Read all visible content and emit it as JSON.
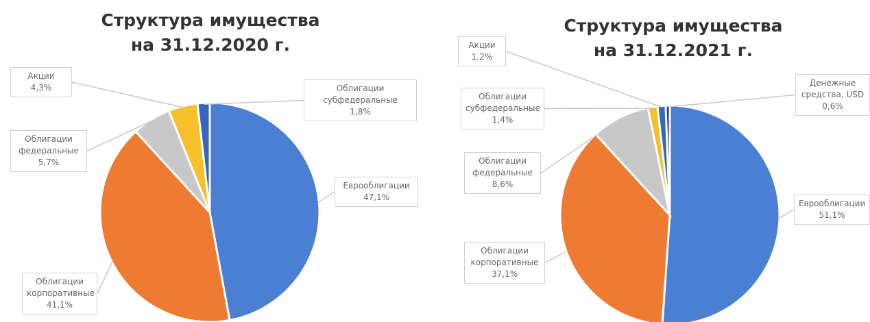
{
  "chart_data": [
    {
      "type": "pie",
      "title": "Структура имущества на 31.12.2020 г.",
      "categories": [
        "Еврооблигации",
        "Облигации корпоративные",
        "Облигации федеральные",
        "Акции",
        "Облигации субфедеральные"
      ],
      "values": [
        47.1,
        41.1,
        5.7,
        4.3,
        1.8
      ],
      "value_labels": [
        "47,1%",
        "41,1%",
        "5,7%",
        "4,3%",
        "1,8%"
      ],
      "colors": [
        "#4a7fd3",
        "#ee7b31",
        "#c8c8c8",
        "#f6c02b",
        "#3567c0"
      ]
    },
    {
      "type": "pie",
      "title": "Структура имущества на 31.12.2021 г.",
      "categories": [
        "Еврооблигации",
        "Облигации корпоративные",
        "Облигации федеральные",
        "Облигации субфедеральные",
        "Акции",
        "Денежные средства, USD"
      ],
      "values": [
        51.1,
        37.1,
        8.6,
        1.4,
        1.2,
        0.6
      ],
      "value_labels": [
        "51,1%",
        "37,1%",
        "8,6%",
        "1,4%",
        "1,2%",
        "0,6%"
      ],
      "colors": [
        "#4a7fd3",
        "#ee7b31",
        "#c8c8c8",
        "#f6c02b",
        "#3567c0",
        "#1f3864"
      ]
    }
  ]
}
